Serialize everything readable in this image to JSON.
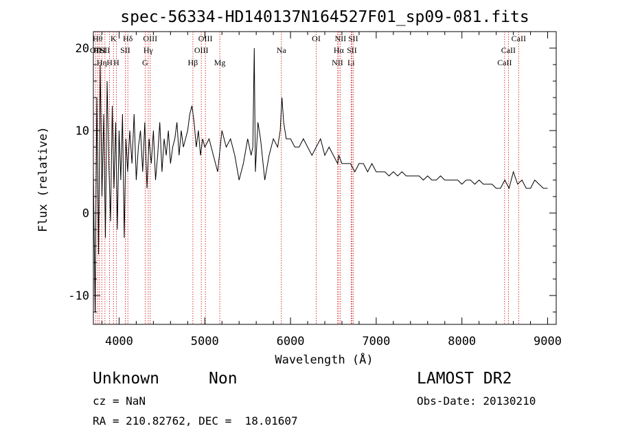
{
  "chart_data": {
    "type": "line",
    "title": "spec-56334-HD140137N164527F01_sp09-081.fits",
    "xlabel": "Wavelength (Å)",
    "ylabel": "Flux (relative)",
    "xlim": [
      3700,
      9100
    ],
    "ylim": [
      -13.5,
      22
    ],
    "xticks": [
      4000,
      5000,
      6000,
      7000,
      8000,
      9000
    ],
    "yticks": [
      -10,
      0,
      10,
      20
    ],
    "grid": false,
    "series": [
      {
        "x": [
          3700,
          3720,
          3740,
          3760,
          3780,
          3800,
          3820,
          3840,
          3860,
          3880,
          3900,
          3920,
          3940,
          3960,
          3980,
          4000,
          4020,
          4040,
          4060,
          4080,
          4100,
          4125,
          4150,
          4175,
          4200,
          4225,
          4250,
          4275,
          4300,
          4325,
          4350,
          4375,
          4400,
          4425,
          4450,
          4475,
          4500,
          4525,
          4550,
          4575,
          4600,
          4625,
          4650,
          4675,
          4700,
          4725,
          4750,
          4775,
          4800,
          4825,
          4850,
          4875,
          4900,
          4925,
          4950,
          4975,
          5000,
          5050,
          5100,
          5150,
          5200,
          5250,
          5300,
          5350,
          5400,
          5450,
          5500,
          5540,
          5560,
          5577,
          5590,
          5620,
          5650,
          5700,
          5750,
          5800,
          5850,
          5880,
          5890,
          5900,
          5920,
          5950,
          6000,
          6050,
          6100,
          6150,
          6200,
          6250,
          6300,
          6350,
          6400,
          6450,
          6500,
          6550,
          6563,
          6600,
          6650,
          6700,
          6750,
          6800,
          6850,
          6900,
          6950,
          7000,
          7050,
          7100,
          7150,
          7200,
          7250,
          7300,
          7350,
          7400,
          7450,
          7500,
          7550,
          7600,
          7650,
          7700,
          7750,
          7800,
          7850,
          7900,
          7950,
          8000,
          8050,
          8100,
          8150,
          8200,
          8250,
          8300,
          8350,
          8400,
          8450,
          8500,
          8550,
          8600,
          8650,
          8700,
          8750,
          8800,
          8850,
          8900,
          8950,
          9000
        ],
        "y": [
          5,
          -12,
          14,
          -5,
          18,
          2,
          12,
          -3,
          16,
          6,
          -1,
          13,
          3,
          11,
          -2,
          10,
          4,
          12,
          -3,
          9,
          5,
          10,
          6,
          12,
          4,
          8,
          10,
          5,
          11,
          3,
          9,
          6,
          10,
          4,
          7,
          11,
          5,
          9,
          7,
          10,
          6,
          8,
          9,
          11,
          7,
          10,
          8,
          9,
          10,
          12,
          13,
          11,
          8,
          10,
          7,
          9,
          8,
          9,
          7,
          5,
          10,
          8,
          9,
          7,
          4,
          6,
          9,
          7,
          8,
          20,
          5,
          11,
          9,
          4,
          7,
          9,
          8,
          10,
          12,
          14,
          11,
          9,
          9,
          8,
          8,
          9,
          8,
          7,
          8,
          9,
          7,
          8,
          7,
          6,
          7,
          6,
          6,
          6,
          5,
          6,
          6,
          5,
          6,
          5,
          5,
          5,
          4.5,
          5,
          4.5,
          5,
          4.5,
          4.5,
          4.5,
          4.5,
          4,
          4.5,
          4,
          4,
          4.5,
          4,
          4,
          4,
          4,
          3.5,
          4,
          4,
          3.5,
          4,
          3.5,
          3.5,
          3.5,
          3,
          3,
          4,
          3,
          5,
          3.5,
          4,
          3,
          3,
          4,
          3.5,
          3,
          3
        ]
      }
    ],
    "lines": [
      {
        "x": 3727,
        "label": "OII",
        "row": 2
      },
      {
        "x": 3750,
        "label": "Hθ",
        "row": 1
      },
      {
        "x": 3771,
        "label": "HeI",
        "row": 2
      },
      {
        "x": 3798,
        "label": "Hη",
        "row": 3
      },
      {
        "x": 3835,
        "label": "SII",
        "row": 2
      },
      {
        "x": 3889,
        "label": "H",
        "row": 3
      },
      {
        "x": 3934,
        "label": "K",
        "row": 1
      },
      {
        "x": 3968,
        "label": "H",
        "row": 3
      },
      {
        "x": 4072,
        "label": "SII",
        "row": 2
      },
      {
        "x": 4102,
        "label": "Hδ",
        "row": 1
      },
      {
        "x": 4304,
        "label": "G",
        "row": 3
      },
      {
        "x": 4340,
        "label": "Hγ",
        "row": 2
      },
      {
        "x": 4363,
        "label": "OIII",
        "row": 1
      },
      {
        "x": 4861,
        "label": "Hβ",
        "row": 3
      },
      {
        "x": 4959,
        "label": "OIII",
        "row": 2
      },
      {
        "x": 5007,
        "label": "OIII",
        "row": 1
      },
      {
        "x": 5175,
        "label": "Mg",
        "row": 3
      },
      {
        "x": 5893,
        "label": "Na",
        "row": 2
      },
      {
        "x": 6300,
        "label": "OI",
        "row": 1
      },
      {
        "x": 6548,
        "label": "NII",
        "row": 3
      },
      {
        "x": 6563,
        "label": "Hα",
        "row": 2
      },
      {
        "x": 6583,
        "label": "NII",
        "row": 1
      },
      {
        "x": 6707,
        "label": "Li",
        "row": 3
      },
      {
        "x": 6716,
        "label": "SII",
        "row": 2
      },
      {
        "x": 6731,
        "label": "SII",
        "row": 1
      },
      {
        "x": 8498,
        "label": "CaII",
        "row": 3
      },
      {
        "x": 8542,
        "label": "CaII",
        "row": 2
      },
      {
        "x": 8662,
        "label": "CaII",
        "row": 1
      }
    ]
  },
  "info": {
    "class": "Unknown",
    "subclass": "Non",
    "survey": "LAMOST DR2",
    "cz": "cz = NaN",
    "obs_date": "Obs-Date: 20130210",
    "radec": "RA = 210.82762, DEC =  18.01607"
  },
  "colors": {
    "line_marker": "#cc0000",
    "spectrum": "#000000"
  }
}
